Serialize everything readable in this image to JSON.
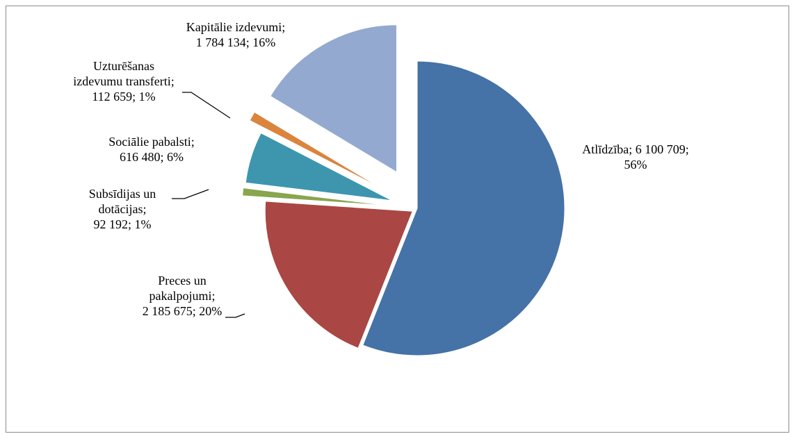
{
  "chart_data": {
    "type": "pie",
    "exploded": true,
    "legend": "none",
    "slices": [
      {
        "label_lines": [
          "Atlīdzība; 6 100 709;",
          "56%"
        ],
        "name": "Atlīdzība",
        "value": 6100709,
        "percent": 56,
        "color": "#4572a7"
      },
      {
        "label_lines": [
          "Preces un",
          "pakalpojumi;",
          "2 185 675; 20%"
        ],
        "name": "Preces un pakalpojumi",
        "value": 2185675,
        "percent": 20,
        "color": "#aa4643"
      },
      {
        "label_lines": [
          "Subsīdijas un",
          "dotācijas;",
          "92 192; 1%"
        ],
        "name": "Subsīdijas un dotācijas",
        "value": 92192,
        "percent": 1,
        "color": "#89a54e"
      },
      {
        "label_lines": [
          "Sociālie pabalsti;",
          "616 480; 6%"
        ],
        "name": "Sociālie pabalsti",
        "value": 616480,
        "percent": 6,
        "color": "#3d96ae"
      },
      {
        "label_lines": [
          "Uzturēšanas",
          "izdevumu transferti;",
          "112 659; 1%"
        ],
        "name": "Uzturēšanas izdevumu transferti",
        "value": 112659,
        "percent": 1,
        "color": "#db843d"
      },
      {
        "label_lines": [
          "Kapitālie izdevumi;",
          "1 784 134; 16%"
        ],
        "name": "Kapitālie izdevumi",
        "value": 1784134,
        "percent": 16,
        "color": "#93a9cf"
      }
    ]
  }
}
